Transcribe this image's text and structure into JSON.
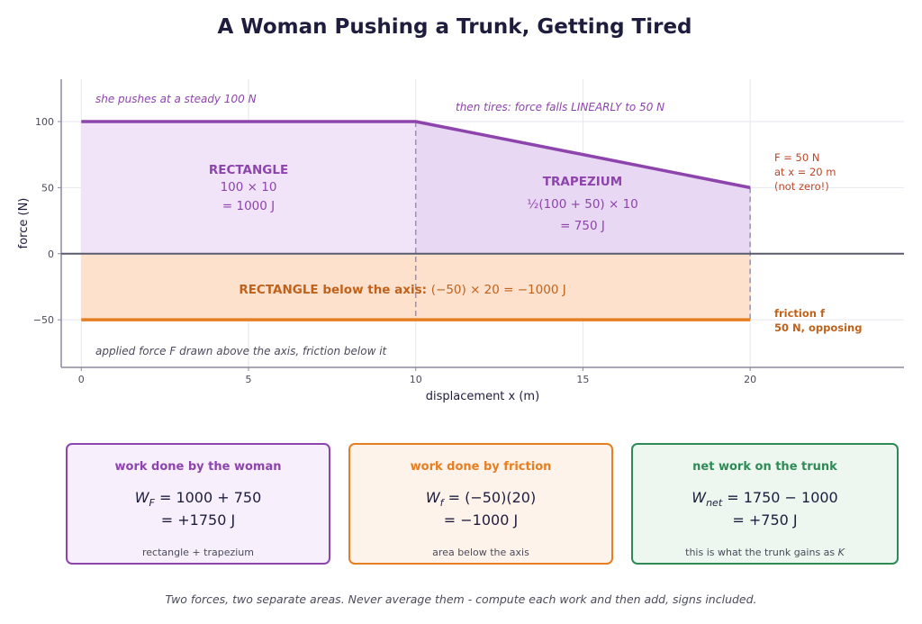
{
  "title": "A Woman Pushing a Trunk, Getting Tired",
  "colors": {
    "woman": "#8e44ad",
    "woman_fill_1": "#f1e4f8",
    "woman_fill_2": "#e8d8f3",
    "friction": "#e67e22",
    "friction_fill": "#fde1cd",
    "friction_text": "#c0621b",
    "annot_red": "#b7472a",
    "net": "#2e8b57",
    "axis": "#5a5a6e"
  },
  "chart_data": {
    "type": "line",
    "xlabel": "displacement x  (m)",
    "ylabel": "force  (N)",
    "xlim": [
      -0.6,
      24.6
    ],
    "ylim": [
      -86,
      132
    ],
    "xticks": [
      0,
      5,
      10,
      15,
      20
    ],
    "yticks": [
      -50,
      0,
      50,
      100
    ],
    "tick_labels_x": [
      "0",
      "5",
      "10",
      "15",
      "20"
    ],
    "tick_labels_y": [
      "−50",
      "0",
      "50",
      "100"
    ],
    "grid": true,
    "series": [
      {
        "role": "applied",
        "x": [
          0,
          10,
          20
        ],
        "y": [
          100,
          100,
          50
        ]
      },
      {
        "role": "friction",
        "x": [
          0,
          20
        ],
        "y": [
          -50,
          -50
        ]
      }
    ],
    "dashed_verticals": [
      10,
      20
    ],
    "annotations": {
      "steady": "she pushes at a steady 100 N",
      "tires": "then tires: force falls LINEARLY to 50 N",
      "endpoint": [
        "F = 50 N",
        "at x = 20 m",
        "(not zero!)"
      ],
      "friction": [
        "friction f",
        "50 N, opposing"
      ],
      "note": "applied force F drawn above the axis, friction below it"
    },
    "regions": {
      "rect": {
        "title": "RECTANGLE",
        "line1": "100 × 10",
        "line2": "= 1000 J"
      },
      "trap": {
        "title": "TRAPEZIUM",
        "line1": "½(100 + 50) × 10",
        "line2": "= 750 J"
      },
      "below": {
        "title": "RECTANGLE below the axis:",
        "expr": "(−50) × 20 = −1000 J"
      }
    }
  },
  "cards": [
    {
      "title": "work done by the woman",
      "line1": "W_F = 1000 + 750",
      "line2": "= +1750 J",
      "note": "rectangle + trapezium"
    },
    {
      "title": "work done by friction",
      "line1": "W_f = (−50)(20)",
      "line2": "= −1000 J",
      "note": "area below the axis"
    },
    {
      "title": "net work on the trunk",
      "line1": "W_net = 1750 − 1000",
      "line2": "= +750 J",
      "note": "this is what the trunk gains as K"
    }
  ],
  "footnote": "Two forces, two separate areas. Never average them - compute each work and then add, signs included."
}
